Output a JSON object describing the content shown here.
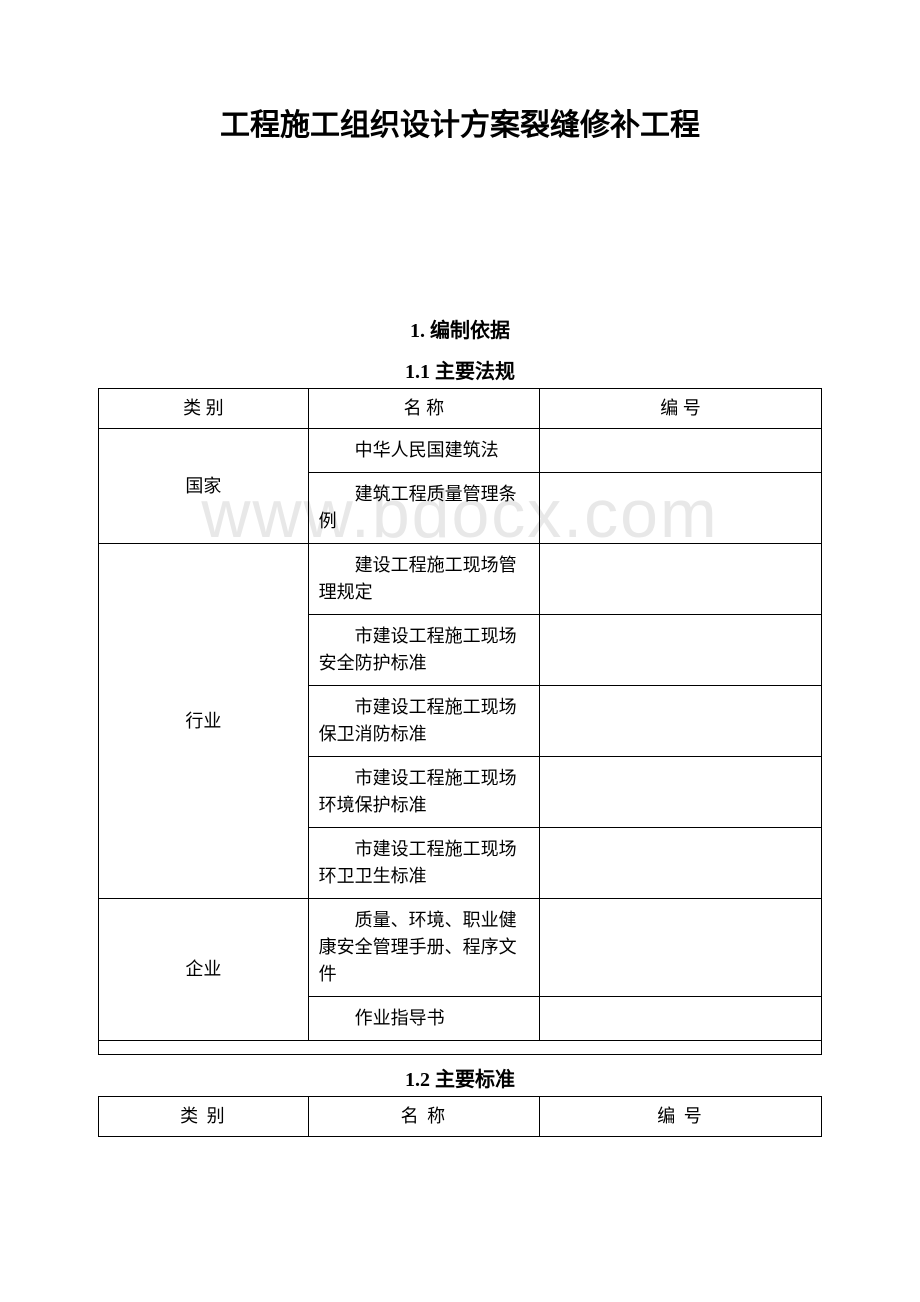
{
  "document": {
    "title": "工程施工组织设计方案裂缝修补工程",
    "watermark": "www.bdocx.com",
    "background_color": "#ffffff",
    "text_color": "#000000",
    "border_color": "#000000",
    "watermark_color": "#e8e8e8",
    "title_fontsize": 30,
    "heading_fontsize": 20,
    "body_fontsize": 18
  },
  "section1": {
    "heading": "1. 编制依据",
    "subsection1": {
      "heading": "1.1 主要法规",
      "table": {
        "columns": [
          "类 别",
          "名  称",
          "编  号"
        ],
        "col_widths": [
          "29%",
          "32%",
          "39%"
        ],
        "rows": [
          {
            "category": "国家",
            "names": [
              "中华人民国建筑法",
              "建筑工程质量管理条例"
            ],
            "numbers": [
              "",
              ""
            ]
          },
          {
            "category": "行业",
            "names": [
              "建设工程施工现场管理规定",
              "市建设工程施工现场安全防护标准",
              "市建设工程施工现场保卫消防标准",
              "市建设工程施工现场环境保护标准",
              "市建设工程施工现场环卫卫生标准"
            ],
            "numbers": [
              "",
              "",
              "",
              "",
              ""
            ]
          },
          {
            "category": "企业",
            "names": [
              "质量、环境、职业健康安全管理手册、程序文件",
              "作业指导书"
            ],
            "numbers": [
              "",
              ""
            ]
          }
        ]
      }
    },
    "subsection2": {
      "heading": "1.2 主要标准",
      "table": {
        "columns": [
          "类  别",
          "名  称",
          "编  号"
        ],
        "col_widths": [
          "29%",
          "32%",
          "39%"
        ]
      }
    }
  }
}
